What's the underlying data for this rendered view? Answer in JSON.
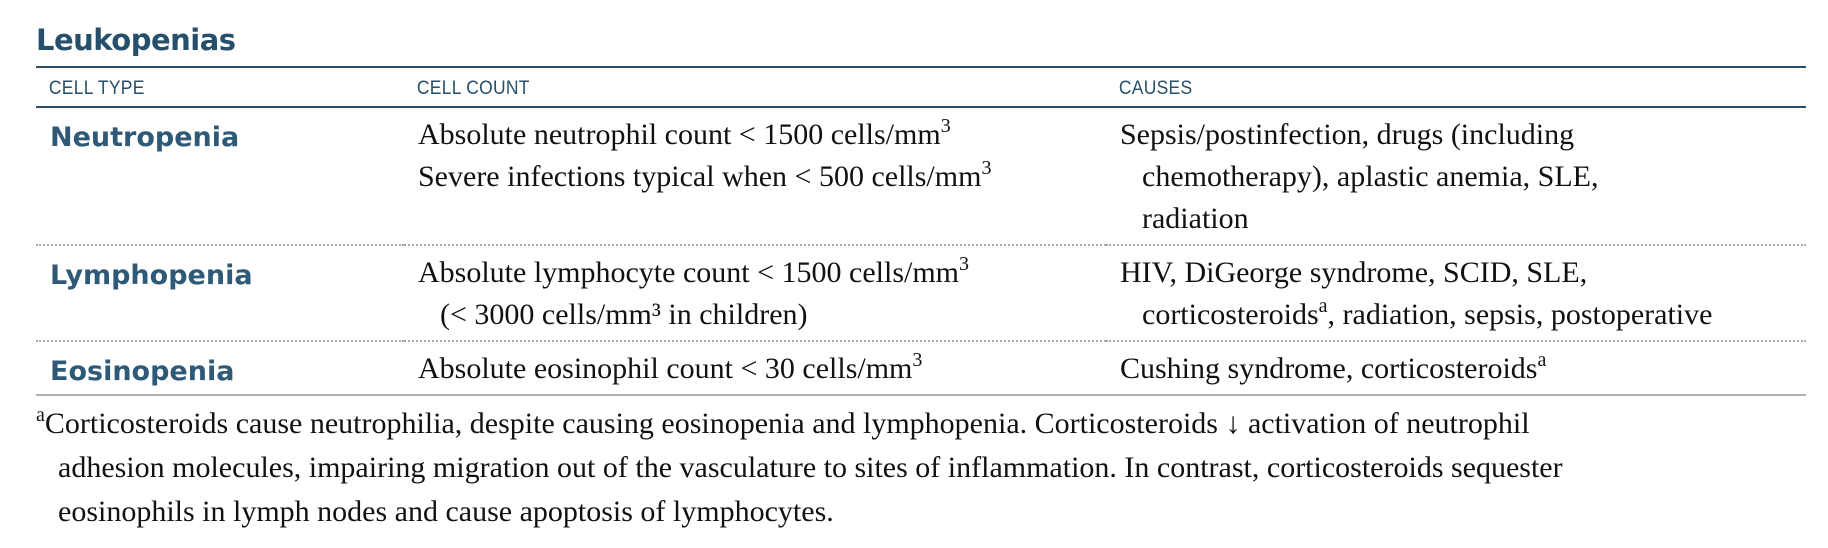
{
  "title": "Leukopenias",
  "headers": {
    "cell_type": "CELL TYPE",
    "cell_count": "CELL COUNT",
    "causes": "CAUSES"
  },
  "rows": [
    {
      "type": "Neutropenia",
      "count_lines": [
        {
          "text": "Absolute neutrophil count < 1500 cells/mm",
          "sup": "3"
        },
        {
          "text": "Severe infections typical when < 500 cells/mm",
          "sup": "3"
        }
      ],
      "causes_lines": [
        {
          "text": "Sepsis/postinfection, drugs (including",
          "sup": ""
        },
        {
          "text": "chemotherapy), aplastic anemia, SLE,",
          "sup": ""
        },
        {
          "text": "radiation",
          "sup": ""
        }
      ]
    },
    {
      "type": "Lymphopenia",
      "count_lines": [
        {
          "text": "Absolute lymphocyte count < 1500 cells/mm",
          "sup": "3"
        },
        {
          "text": "(< 3000 cells/mm³ in children)",
          "sup": ""
        }
      ],
      "causes_lines": [
        {
          "text": "HIV, DiGeorge syndrome, SCID, SLE,",
          "sup": "",
          "after": ""
        },
        {
          "text": "corticosteroids",
          "sup": "a",
          "after": ", radiation, sepsis, postoperative"
        }
      ]
    },
    {
      "type": "Eosinopenia",
      "count_lines": [
        {
          "text": "Absolute eosinophil count < 30 cells/mm",
          "sup": "3"
        }
      ],
      "causes_lines": [
        {
          "text": "Cushing syndrome, corticosteroids",
          "sup": "a"
        }
      ]
    }
  ],
  "footnote": {
    "marker": "a",
    "lines": [
      "Corticosteroids cause neutrophilia, despite causing eosinopenia and lymphopenia. Corticosteroids ↓ activation of neutrophil",
      "adhesion molecules, impairing migration out of the vasculature to sites of inflammation. In contrast, corticosteroids sequester",
      "eosinophils in lymph nodes and cause apoptosis of lymphocytes."
    ]
  }
}
